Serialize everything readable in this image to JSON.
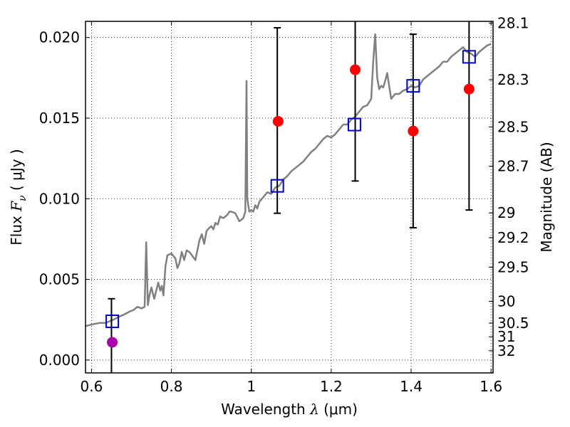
{
  "chart_data": {
    "type": "scatter",
    "title": "",
    "xlabel": {
      "prefix": "Wavelength  ",
      "symbol": "λ",
      "suffix": " (μm)"
    },
    "ylabel": {
      "prefix": "Flux  ",
      "symbol": "F",
      "subscript": "ν",
      "suffix": "  ( μJy )"
    },
    "ylabel_right": "Magnitude (AB)",
    "xlim": [
      0.585,
      1.605
    ],
    "ylim": [
      -0.0008,
      0.021
    ],
    "grid": true,
    "x_ticks": [
      {
        "value": 0.6,
        "label": "0.6"
      },
      {
        "value": 0.8,
        "label": "0.8"
      },
      {
        "value": 1.0,
        "label": "1"
      },
      {
        "value": 1.2,
        "label": "1.2"
      },
      {
        "value": 1.4,
        "label": "1.4"
      },
      {
        "value": 1.6,
        "label": "1.6"
      }
    ],
    "y_ticks": [
      {
        "value": 0.0,
        "label": "0.000"
      },
      {
        "value": 0.005,
        "label": "0.005"
      },
      {
        "value": 0.01,
        "label": "0.010"
      },
      {
        "value": 0.015,
        "label": "0.015"
      },
      {
        "value": 0.02,
        "label": "0.020"
      }
    ],
    "right_ticks": [
      {
        "value": 28.1,
        "label": "28.1"
      },
      {
        "value": 28.3,
        "label": "28.3"
      },
      {
        "value": 28.5,
        "label": "28.5"
      },
      {
        "value": 28.7,
        "label": "28.7"
      },
      {
        "value": 29.0,
        "label": "29"
      },
      {
        "value": 29.2,
        "label": "29.2"
      },
      {
        "value": 29.5,
        "label": "29.5"
      },
      {
        "value": 30.0,
        "label": "30"
      },
      {
        "value": 30.5,
        "label": "30.5"
      },
      {
        "value": 31.0,
        "label": "31"
      },
      {
        "value": 32.0,
        "label": "32"
      }
    ],
    "series": [
      {
        "type": "line",
        "color": "#808080",
        "x": [
          0.585,
          0.6,
          0.62,
          0.635,
          0.645,
          0.655,
          0.67,
          0.68,
          0.695,
          0.705,
          0.715,
          0.725,
          0.733,
          0.737,
          0.741,
          0.745,
          0.75,
          0.757,
          0.763,
          0.767,
          0.772,
          0.776,
          0.78,
          0.785,
          0.79,
          0.8,
          0.81,
          0.815,
          0.82,
          0.826,
          0.832,
          0.838,
          0.845,
          0.86,
          0.87,
          0.876,
          0.882,
          0.888,
          0.895,
          0.9,
          0.905,
          0.91,
          0.916,
          0.922,
          0.93,
          0.94,
          0.945,
          0.95,
          0.96,
          0.97,
          0.98,
          0.985,
          0.988,
          0.99,
          0.993,
          0.995,
          1.0,
          1.005,
          1.01,
          1.015,
          1.02,
          1.03,
          1.04,
          1.05,
          1.06,
          1.07,
          1.08,
          1.09,
          1.1,
          1.11,
          1.12,
          1.13,
          1.14,
          1.15,
          1.16,
          1.17,
          1.18,
          1.19,
          1.2,
          1.21,
          1.22,
          1.23,
          1.24,
          1.25,
          1.26,
          1.27,
          1.28,
          1.29,
          1.3,
          1.305,
          1.31,
          1.315,
          1.32,
          1.325,
          1.33,
          1.335,
          1.34,
          1.35,
          1.36,
          1.37,
          1.38,
          1.39,
          1.4,
          1.41,
          1.42,
          1.43,
          1.44,
          1.45,
          1.46,
          1.47,
          1.48,
          1.49,
          1.5,
          1.51,
          1.52,
          1.53,
          1.54,
          1.55,
          1.56,
          1.57,
          1.58,
          1.59,
          1.6
        ],
        "y": [
          0.0021,
          0.0022,
          0.0023,
          0.0023,
          0.0024,
          0.0025,
          0.0027,
          0.0028,
          0.003,
          0.0031,
          0.0033,
          0.0032,
          0.0033,
          0.0073,
          0.0034,
          0.004,
          0.0045,
          0.0038,
          0.0044,
          0.0048,
          0.0043,
          0.0046,
          0.004,
          0.0058,
          0.0065,
          0.0066,
          0.0063,
          0.0057,
          0.006,
          0.0067,
          0.0062,
          0.0068,
          0.0067,
          0.0062,
          0.0074,
          0.0078,
          0.0072,
          0.008,
          0.0082,
          0.0083,
          0.0081,
          0.0085,
          0.0084,
          0.0089,
          0.0088,
          0.009,
          0.0092,
          0.0092,
          0.0091,
          0.0086,
          0.0088,
          0.0092,
          0.0173,
          0.01,
          0.0095,
          0.0092,
          0.0093,
          0.0092,
          0.0096,
          0.0094,
          0.0098,
          0.0101,
          0.0104,
          0.0103,
          0.0107,
          0.0108,
          0.0112,
          0.0114,
          0.0117,
          0.0119,
          0.0121,
          0.0123,
          0.0126,
          0.0129,
          0.0131,
          0.0134,
          0.0137,
          0.0139,
          0.0138,
          0.014,
          0.0143,
          0.0146,
          0.0146,
          0.0149,
          0.0151,
          0.0154,
          0.0157,
          0.0158,
          0.0162,
          0.0185,
          0.0202,
          0.0175,
          0.0168,
          0.017,
          0.0169,
          0.0173,
          0.0178,
          0.0162,
          0.0165,
          0.0165,
          0.0167,
          0.0168,
          0.017,
          0.0169,
          0.017,
          0.0174,
          0.0176,
          0.0178,
          0.018,
          0.0182,
          0.0185,
          0.0185,
          0.0188,
          0.019,
          0.0192,
          0.0194,
          0.0191,
          0.019,
          0.0188,
          0.0191,
          0.0193,
          0.0195,
          0.0196
        ]
      },
      {
        "type": "errorbar",
        "color": "#000000",
        "points": [
          {
            "x": 0.65,
            "low": -0.0008,
            "high": 0.0038
          },
          {
            "x": 1.065,
            "low": 0.0091,
            "high": 0.0206
          },
          {
            "x": 1.26,
            "low": 0.0111,
            "high": 0.021
          },
          {
            "x": 1.405,
            "low": 0.0082,
            "high": 0.0202
          },
          {
            "x": 1.545,
            "low": 0.0093,
            "high": 0.021
          }
        ]
      },
      {
        "type": "scatter",
        "marker": "square",
        "color": "#0000cc",
        "x": [
          0.652,
          1.065,
          1.258,
          1.405,
          1.545
        ],
        "y": [
          0.0024,
          0.0108,
          0.0146,
          0.017,
          0.0188
        ]
      },
      {
        "type": "scatter",
        "marker": "circle",
        "color": "#ff0000",
        "x": [
          1.067,
          1.26,
          1.405,
          1.545
        ],
        "y": [
          0.0148,
          0.018,
          0.0142,
          0.0168
        ]
      },
      {
        "type": "scatter",
        "marker": "circle",
        "color": "#aa00aa",
        "x": [
          0.652
        ],
        "y": [
          0.0011
        ]
      }
    ]
  }
}
